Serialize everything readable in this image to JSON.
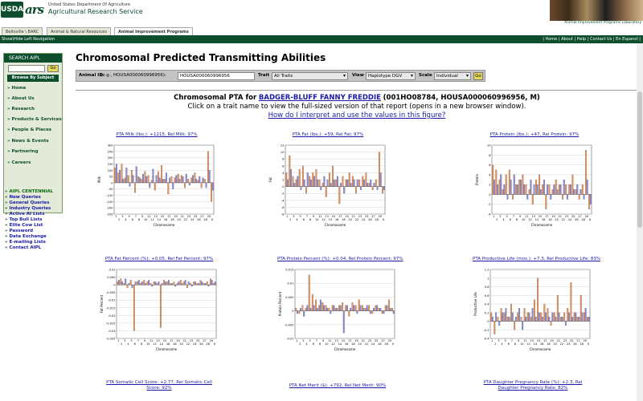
{
  "header": {
    "usda_logo": "USDA",
    "ars_logo": "ars",
    "agency_small": "United States Department Of Agriculture",
    "agency_name": "Agricultural Research Service",
    "lab_name": "Animal Improvement Programs Laboratory"
  },
  "tabs": [
    {
      "label": "Beltsville \\ BARC"
    },
    {
      "label": "Animal & Natural Resources"
    },
    {
      "label": "Animal Improvement Programs"
    }
  ],
  "navbar": {
    "show_hide": "Show\\Hide Left Navigation",
    "links": "| Home | About | Help | Contact Us | En Espanol |"
  },
  "sidebar": {
    "search_title": "SEARCH AIPL",
    "go": "Go",
    "browse_title": "Browse By Subject",
    "items": [
      "Home",
      "About Us",
      "Research",
      "Products & Services",
      "People & Places",
      "News & Events",
      "Partnering",
      "Careers"
    ],
    "aipl_links": [
      "AIPL CENTENNIAL",
      "New Queries",
      "General Queries",
      "Industry Queries",
      "Active AI Lists",
      "Top Bull Lists",
      "Elite Cow List",
      "Password",
      "Data Exchange",
      "E-mailing Lists",
      "Contact AIPL"
    ]
  },
  "main": {
    "title": "Chromosomal Predicted Transmitting Abilities",
    "form": {
      "animal_id_label": "Animal ID",
      "animal_id_hint": "(e.g., HOUSA000060996956):",
      "animal_id_value": "HOUSA000060996956",
      "trait_label": "Trait",
      "trait_value": "All Traits",
      "view_label": "View",
      "view_value": "Haplotype DGV",
      "scale_label": "Scale",
      "scale_value": "Individual",
      "go": "Go"
    },
    "heading_prefix": "Chromosomal PTA for",
    "animal_name": "BADGER-BLUFF FANNY FREDDIE",
    "animal_ids": "(001HO08784, HOUSA000060996956, M)",
    "click_note": "Click on a trait name to view the full-sized version of that report (opens in a new browser window).",
    "interpret_link": "How do I interpret and use the values in this figure?"
  },
  "charts": [
    {
      "title": "PTA Milk (lbs.): +1215, Rel Milk: 97%",
      "ylabel": "Milk",
      "xlabel": "Chromosome",
      "yticks": [
        "300",
        "250",
        "200",
        "150",
        "100",
        "50",
        "0",
        "-50",
        "-100",
        "-150",
        "-200",
        "-250"
      ]
    },
    {
      "title": "PTA Fat (lbs.): +59, Rel Fat: 97%",
      "ylabel": "Fat",
      "xlabel": "Chromosome",
      "yticks": [
        "12",
        "10",
        "8",
        "6",
        "4",
        "2",
        "0",
        "-2",
        "-4",
        "-6",
        "-8"
      ]
    },
    {
      "title": "PTA Protein (lbs.): +47, Rel Protein: 97%",
      "ylabel": "Protein",
      "xlabel": "Chromosome",
      "yticks": [
        "10",
        "8",
        "6",
        "4",
        "2",
        "0",
        "-2",
        "-4"
      ]
    },
    {
      "title": "PTA Fat Percent (%): +0.05, Rel Fat Percent: 97%",
      "ylabel": "Fat Percent",
      "xlabel": "Chromosome",
      "yticks": [
        "0.01",
        "0.005",
        "0",
        "-0.005",
        "-0.01",
        "-0.015",
        "-0.02",
        "-0.025",
        "-0.03",
        "-0.035"
      ]
    },
    {
      "title": "PTA Protein Percent (%): +0.04, Rel Protein Percent: 97%",
      "ylabel": "Protein Percent",
      "xlabel": "Chromosome",
      "yticks": [
        "0.015",
        "0.01",
        "0.005",
        "0",
        "-0.005",
        "-0.01"
      ]
    },
    {
      "title": "PTA Productive Life (mos.): +7.3, Rel Productive Life: 83%",
      "ylabel": "Productive Life",
      "xlabel": "Chromosome",
      "yticks": [
        "1.2",
        "1",
        "0.8",
        "0.6",
        "0.4",
        "0.2",
        "0",
        "-0.2",
        "-0.4"
      ]
    },
    {
      "title": "PTA Somatic Cell Score: +2.77, Rel Somatic Cell Score: 92%",
      "ylabel": "",
      "xlabel": "",
      "yticks": []
    },
    {
      "title": "PTA Net Merit ($): +792, Rel Net Merit: 90%",
      "ylabel": "",
      "xlabel": "",
      "yticks": []
    },
    {
      "title": "PTA Daughter Pregnancy Rate (%): +2.3, Rel Daughter Pregnancy Rate: 82%",
      "ylabel": "",
      "xlabel": "",
      "yticks": []
    }
  ],
  "chart_data": [
    {
      "type": "bar",
      "title": "PTA Milk (lbs.): +1215, Rel Milk: 97%",
      "xlabel": "Chromosome",
      "ylabel": "Milk",
      "ylim": [
        -250,
        300
      ],
      "categories": [
        "1",
        "2",
        "3",
        "4",
        "5",
        "6",
        "7",
        "8",
        "9",
        "10",
        "11",
        "12",
        "13",
        "14",
        "15",
        "16",
        "17",
        "18",
        "19",
        "20",
        "21",
        "22",
        "23",
        "24",
        "25",
        "26",
        "27",
        "28",
        "29",
        "X"
      ],
      "series": [
        {
          "name": "",
          "color": "#e8915a",
          "values": [
            120,
            80,
            150,
            40,
            60,
            100,
            -80,
            50,
            30,
            90,
            60,
            20,
            -60,
            90,
            140,
            30,
            -90,
            50,
            40,
            70,
            60,
            -40,
            30,
            40,
            80,
            20,
            -40,
            30,
            250,
            -150
          ]
        },
        {
          "name": "",
          "color": "#8a8ad8",
          "values": [
            150,
            100,
            30,
            120,
            -30,
            60,
            130,
            40,
            70,
            50,
            -40,
            110,
            60,
            40,
            30,
            80,
            40,
            -50,
            60,
            30,
            50,
            70,
            -20,
            60,
            30,
            50,
            40,
            -40,
            100,
            -60
          ]
        }
      ]
    },
    {
      "type": "bar",
      "title": "PTA Fat (lbs.): +59, Rel Fat: 97%",
      "xlabel": "Chromosome",
      "ylabel": "Fat",
      "ylim": [
        -8,
        12
      ],
      "categories": [
        "1",
        "2",
        "3",
        "4",
        "5",
        "6",
        "7",
        "8",
        "9",
        "10",
        "11",
        "12",
        "13",
        "14",
        "15",
        "16",
        "17",
        "18",
        "19",
        "20",
        "21",
        "22",
        "23",
        "24",
        "25",
        "26",
        "27",
        "28",
        "29",
        "X"
      ],
      "series": [
        {
          "name": "",
          "color": "#e8915a",
          "values": [
            4,
            9,
            3,
            2,
            5,
            6,
            -2,
            3,
            4,
            5,
            2,
            1,
            -3,
            4,
            6,
            2,
            -5,
            3,
            2,
            4,
            3,
            -2,
            2,
            3,
            4,
            1,
            -1,
            2,
            10,
            -2
          ]
        },
        {
          "name": "",
          "color": "#8a8ad8",
          "values": [
            2,
            5,
            1,
            3,
            -1,
            2,
            4,
            2,
            3,
            2,
            -1,
            3,
            2,
            1,
            2,
            3,
            1,
            -2,
            2,
            1,
            2,
            2,
            -1,
            2,
            1,
            2,
            1,
            -1,
            4,
            -1
          ]
        }
      ]
    },
    {
      "type": "bar",
      "title": "PTA Protein (lbs.): +47, Rel Protein: 97%",
      "xlabel": "Chromosome",
      "ylabel": "Protein",
      "ylim": [
        -4,
        10
      ],
      "categories": [
        "1",
        "2",
        "3",
        "4",
        "5",
        "6",
        "7",
        "8",
        "9",
        "10",
        "11",
        "12",
        "13",
        "14",
        "15",
        "16",
        "17",
        "18",
        "19",
        "20",
        "21",
        "22",
        "23",
        "24",
        "25",
        "26",
        "27",
        "28",
        "29",
        "X"
      ],
      "series": [
        {
          "name": "",
          "color": "#e8915a",
          "values": [
            6,
            5,
            3,
            1,
            4,
            5,
            -1,
            2,
            3,
            4,
            2,
            1,
            -2,
            3,
            4,
            2,
            -3,
            2,
            1,
            3,
            2,
            -1,
            2,
            2,
            4,
            1,
            -1,
            2,
            9,
            -3
          ]
        },
        {
          "name": "",
          "color": "#8a8ad8",
          "values": [
            3,
            2,
            4,
            2,
            -1,
            3,
            4,
            2,
            3,
            2,
            -1,
            3,
            2,
            2,
            1,
            3,
            2,
            -1,
            2,
            1,
            2,
            3,
            -1,
            2,
            1,
            2,
            1,
            -1,
            3,
            -2
          ]
        }
      ]
    },
    {
      "type": "bar",
      "title": "PTA Fat Percent (%): +0.05, Rel Fat Percent: 97%",
      "xlabel": "Chromosome",
      "ylabel": "Fat Percent",
      "ylim": [
        -0.035,
        0.01
      ],
      "categories": [
        "1",
        "2",
        "3",
        "4",
        "5",
        "6",
        "7",
        "8",
        "9",
        "10",
        "11",
        "12",
        "13",
        "14",
        "15",
        "16",
        "17",
        "18",
        "19",
        "20",
        "21",
        "22",
        "23",
        "24",
        "25",
        "26",
        "27",
        "28",
        "29",
        "X"
      ],
      "series": [
        {
          "name": "",
          "color": "#e8915a",
          "values": [
            0.002,
            0.004,
            0.001,
            -0.002,
            0.003,
            -0.03,
            0.002,
            0.001,
            0.003,
            0.002,
            0.001,
            0.002,
            0.001,
            -0.028,
            0.003,
            0.002,
            0.001,
            0.002,
            0.001,
            0.003,
            0.002,
            -0.002,
            0.001,
            0.002,
            0.001,
            0.003,
            0.001,
            0.002,
            0.004,
            0.001
          ]
        },
        {
          "name": "",
          "color": "#8a8ad8",
          "values": [
            0.003,
            0.002,
            0.004,
            0.001,
            -0.002,
            0.002,
            0.003,
            0.002,
            0.001,
            0.003,
            -0.001,
            0.002,
            0.002,
            0.001,
            0.002,
            0.003,
            0.001,
            -0.001,
            0.002,
            0.001,
            0.003,
            0.002,
            -0.001,
            0.002,
            0.001,
            0.002,
            0.001,
            -0.001,
            0.003,
            0.002
          ]
        }
      ]
    },
    {
      "type": "bar",
      "title": "PTA Protein Percent (%): +0.04, Rel Protein Percent: 97%",
      "xlabel": "Chromosome",
      "ylabel": "Protein Percent",
      "ylim": [
        -0.01,
        0.015
      ],
      "categories": [
        "1",
        "2",
        "3",
        "4",
        "5",
        "6",
        "7",
        "8",
        "9",
        "10",
        "11",
        "12",
        "13",
        "14",
        "15",
        "16",
        "17",
        "18",
        "19",
        "20",
        "21",
        "22",
        "23",
        "24",
        "25",
        "26",
        "27",
        "28",
        "29",
        "X"
      ],
      "series": [
        {
          "name": "",
          "color": "#e8915a",
          "values": [
            0.001,
            -0.001,
            0.002,
            0.001,
            0.013,
            0.006,
            0.004,
            0.002,
            0.003,
            0.002,
            0.001,
            0.002,
            0.001,
            0.002,
            0.003,
            0.002,
            -0.002,
            0.003,
            0.002,
            0.004,
            0.002,
            0.001,
            0.002,
            -0.001,
            0.002,
            0.001,
            -0.001,
            0.002,
            0.004,
            0.001
          ]
        },
        {
          "name": "",
          "color": "#8a8ad8",
          "values": [
            -0.001,
            0.001,
            -0.002,
            0.002,
            0.001,
            0.002,
            0.001,
            0.004,
            0.002,
            0.001,
            -0.001,
            0.002,
            0.001,
            0.002,
            -0.008,
            0.002,
            0.001,
            0.002,
            -0.001,
            0.002,
            0.001,
            0.002,
            -0.001,
            0.001,
            0.002,
            0.001,
            -0.001,
            0.002,
            0.001,
            -0.001
          ]
        }
      ]
    },
    {
      "type": "bar",
      "title": "PTA Productive Life (mos.): +7.3, Rel Productive Life: 83%",
      "xlabel": "Chromosome",
      "ylabel": "Productive Life",
      "ylim": [
        -0.4,
        1.2
      ],
      "categories": [
        "1",
        "2",
        "3",
        "4",
        "5",
        "6",
        "7",
        "8",
        "9",
        "10",
        "11",
        "12",
        "13",
        "14",
        "15",
        "16",
        "17",
        "18",
        "19",
        "20",
        "21",
        "22",
        "23",
        "24",
        "25",
        "26",
        "27",
        "28",
        "29",
        "X"
      ],
      "series": [
        {
          "name": "",
          "color": "#e8915a",
          "values": [
            0.2,
            -0.3,
            0.1,
            0.3,
            0.2,
            0.1,
            0.4,
            -0.2,
            0.2,
            0.1,
            0.3,
            0.2,
            0.1,
            0.5,
            1.0,
            0.2,
            0.4,
            0.3,
            -0.1,
            0.2,
            0.6,
            0.1,
            0.2,
            0.3,
            0.9,
            0.2,
            0.1,
            0.6,
            0.2,
            0.1
          ]
        },
        {
          "name": "",
          "color": "#8a8ad8",
          "values": [
            0.1,
            0.2,
            -0.1,
            0.2,
            0.3,
            0.1,
            0.2,
            0.1,
            0.3,
            -0.2,
            0.1,
            0.2,
            0.3,
            0.1,
            0.2,
            0.1,
            0.2,
            0.1,
            0.2,
            0.1,
            0.2,
            0.1,
            -0.1,
            0.2,
            0.1,
            0.2,
            0.1,
            0.2,
            0.3,
            0.1
          ]
        }
      ]
    }
  ]
}
